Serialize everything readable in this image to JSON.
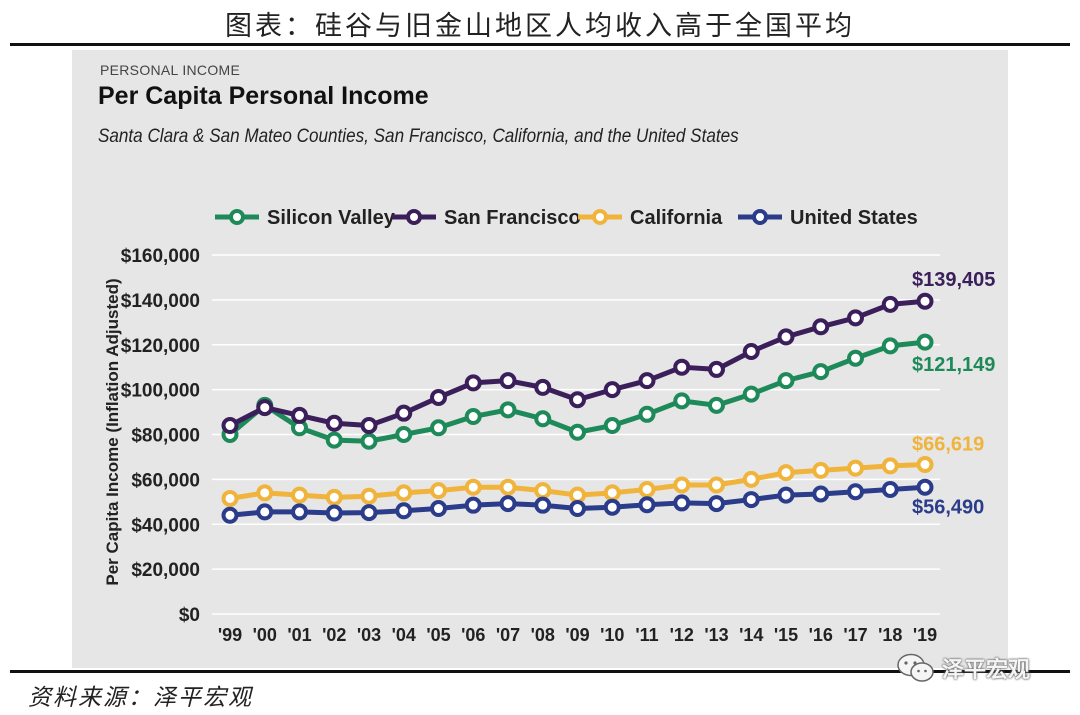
{
  "header": {
    "title": "图表：硅谷与旧金山地区人均收入高于全国平均"
  },
  "footer": {
    "source": "资料来源：泽平宏观",
    "watermark": "泽平宏观",
    "watermark_icon": "wechat-icon"
  },
  "chart_data": {
    "type": "line",
    "kicker": "PERSONAL INCOME",
    "title": "Per Capita Personal Income",
    "subtitle": "Santa Clara & San Mateo Counties, San Francisco, California, and the United States",
    "ylabel": "Per Capita Income (Inflation Adjusted)",
    "xlabel": "",
    "ylim": [
      0,
      160000
    ],
    "y_ticks": [
      0,
      20000,
      40000,
      60000,
      80000,
      100000,
      120000,
      140000,
      160000
    ],
    "y_tick_labels": [
      "$0",
      "$20,000",
      "$40,000",
      "$60,000",
      "$80,000",
      "$100,000",
      "$120,000",
      "$140,000",
      "$160,000"
    ],
    "categories": [
      "'99",
      "'00",
      "'01",
      "'02",
      "'03",
      "'04",
      "'05",
      "'06",
      "'07",
      "'08",
      "'09",
      "'10",
      "'11",
      "'12",
      "'13",
      "'14",
      "'15",
      "'16",
      "'17",
      "'18",
      "'19"
    ],
    "grid": true,
    "legend_position": "top",
    "series": [
      {
        "name": "Silicon Valley",
        "color": "#1e8a5a",
        "values": [
          80000,
          93000,
          83000,
          77500,
          77000,
          80000,
          83000,
          88000,
          91000,
          87000,
          81000,
          84000,
          89000,
          95000,
          93000,
          98000,
          104000,
          108000,
          114000,
          119500,
          121149
        ],
        "end_label": "$121,149"
      },
      {
        "name": "San Francisco",
        "color": "#3b1f5a",
        "values": [
          84000,
          92000,
          88500,
          85000,
          84000,
          89500,
          96500,
          103000,
          104000,
          101000,
          95500,
          100000,
          104000,
          110000,
          109000,
          117000,
          123500,
          128000,
          132000,
          138000,
          139405
        ],
        "end_label": "$139,405"
      },
      {
        "name": "California",
        "color": "#f0b43c",
        "values": [
          51500,
          54000,
          53000,
          52000,
          52500,
          54000,
          55000,
          56500,
          56500,
          55000,
          53000,
          54000,
          55500,
          57500,
          57500,
          60000,
          63000,
          64000,
          65000,
          66000,
          66619
        ],
        "end_label": "$66,619"
      },
      {
        "name": "United States",
        "color": "#2a3c8a",
        "values": [
          44000,
          45500,
          45500,
          45000,
          45200,
          46000,
          47000,
          48500,
          49200,
          48500,
          47000,
          47600,
          48700,
          49500,
          49200,
          51000,
          53000,
          53500,
          54500,
          55500,
          56490
        ],
        "end_label": "$56,490"
      }
    ]
  }
}
